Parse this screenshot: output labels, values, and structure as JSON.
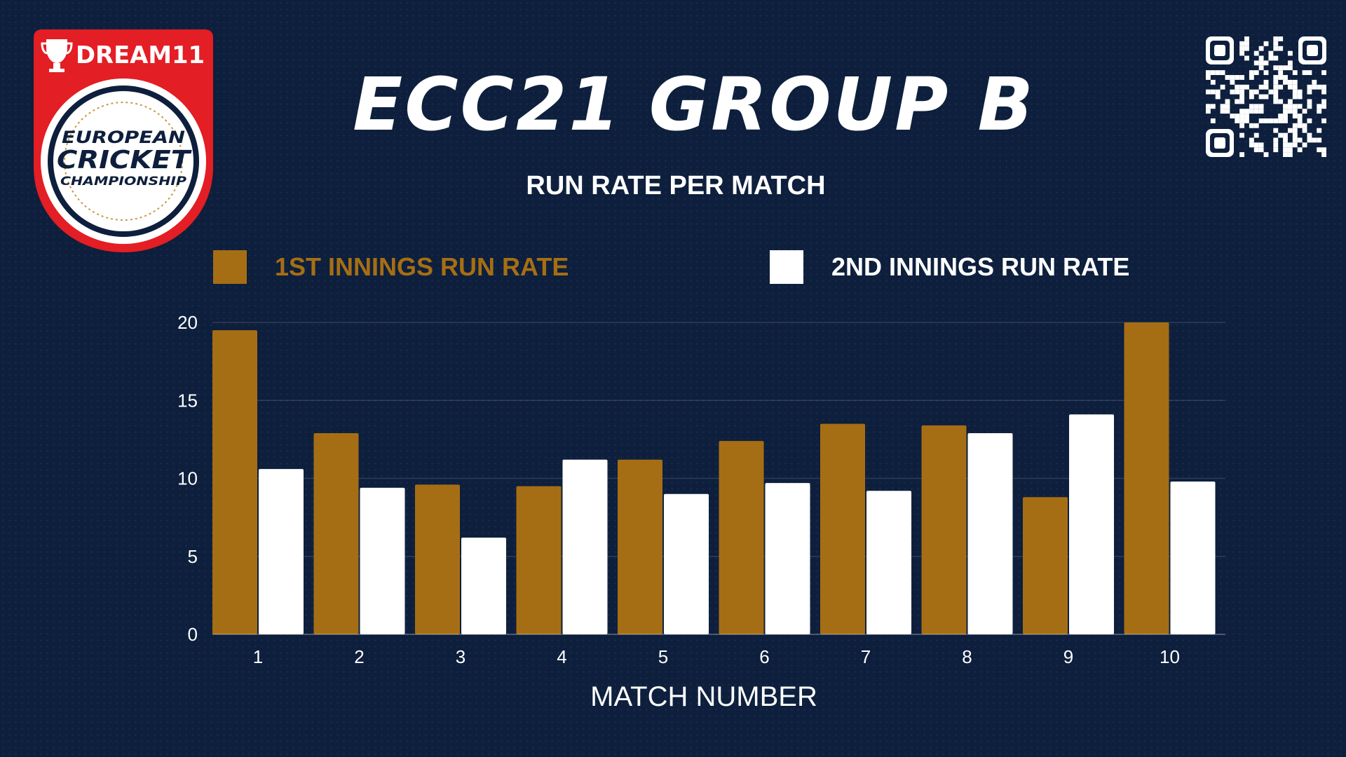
{
  "header": {
    "title": "ECC21 GROUP B"
  },
  "logo": {
    "brand": "DREAM11",
    "line1": "EUROPEAN",
    "line2": "CRICKET",
    "line3": "CHAMPIONSHIP"
  },
  "colors": {
    "background": "#0d1f3c",
    "first_innings": "#a66e14",
    "second_innings": "#ffffff",
    "logo_red": "#e31e24"
  },
  "chart_data": {
    "type": "bar",
    "title": "RUN RATE PER MATCH",
    "xlabel": "MATCH NUMBER",
    "ylabel": "",
    "categories": [
      "1",
      "2",
      "3",
      "4",
      "5",
      "6",
      "7",
      "8",
      "9",
      "10"
    ],
    "series": [
      {
        "name": "1ST INNINGS RUN RATE",
        "values": [
          19.5,
          12.9,
          9.6,
          9.5,
          11.2,
          12.4,
          13.5,
          13.4,
          8.8,
          20.0
        ]
      },
      {
        "name": "2ND INNINGS RUN RATE",
        "values": [
          10.6,
          9.4,
          6.2,
          11.2,
          9.0,
          9.7,
          9.2,
          12.9,
          14.1,
          9.8
        ]
      }
    ],
    "ylim": [
      0,
      20
    ],
    "yticks": [
      "0",
      "5",
      "10",
      "15",
      "20"
    ],
    "grid": true,
    "legend": "top"
  }
}
